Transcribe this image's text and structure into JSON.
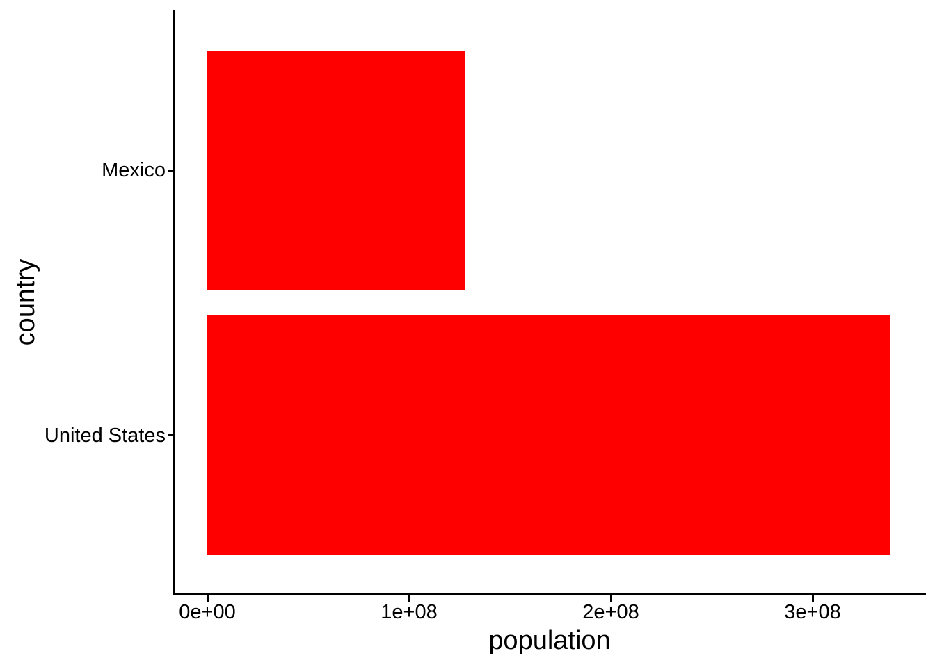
{
  "chart_data": {
    "type": "bar",
    "orientation": "horizontal",
    "title": "",
    "xlabel": "population",
    "ylabel": "country",
    "categories": [
      "Mexico",
      "United States"
    ],
    "values": [
      127500000,
      338500000
    ],
    "xlim": [
      0,
      356000000
    ],
    "x_ticks": [
      {
        "value": 0,
        "label": "0e+00"
      },
      {
        "value": 100000000,
        "label": "1e+08"
      },
      {
        "value": 200000000,
        "label": "2e+08"
      },
      {
        "value": 300000000,
        "label": "3e+08"
      }
    ],
    "grid": false,
    "legend": "none",
    "bar_color": "#FF0000",
    "axis_color": "#000000",
    "text_color": "#000000",
    "background": "#FFFFFF"
  }
}
